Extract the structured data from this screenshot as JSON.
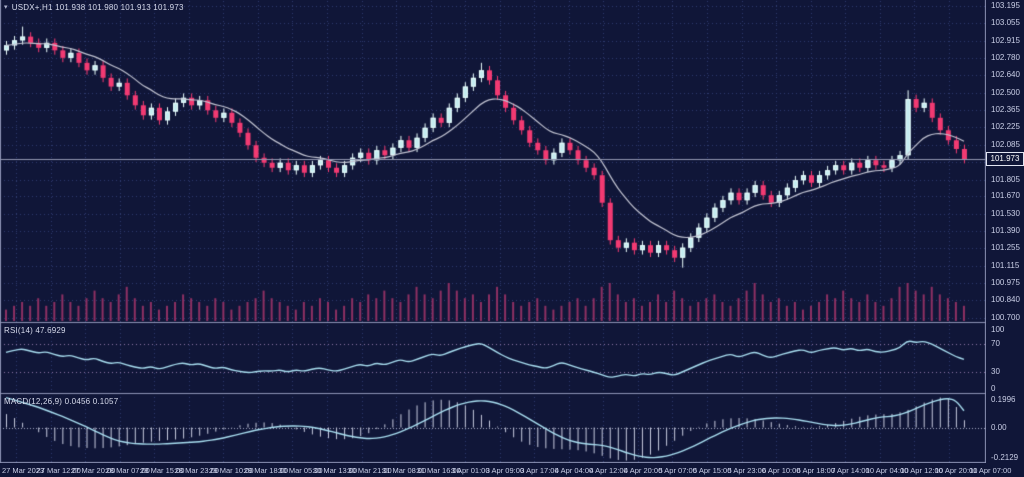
{
  "window": {
    "title": "USDX+,H1 101.938 101.980 101.913 101.973",
    "symbol": "USDX+",
    "timeframe": "H1",
    "open": "101.938",
    "high": "101.980",
    "low": "101.913",
    "close": "101.973",
    "dropdown_icon": "▾"
  },
  "price_axis": {
    "ticks": [
      "103.195",
      "103.055",
      "102.915",
      "102.780",
      "102.640",
      "102.500",
      "102.365",
      "102.225",
      "102.085",
      "101.945",
      "101.805",
      "101.670",
      "101.530",
      "101.390",
      "101.255",
      "101.115",
      "100.975",
      "100.840",
      "100.700"
    ],
    "current_price": "101.973"
  },
  "rsi": {
    "label": "RSI(14) 47.6929",
    "axis_labels": [
      "100",
      "70",
      "30",
      "0"
    ]
  },
  "macd": {
    "label": "MACD(12,26,9) 0.0456 0.1057",
    "axis_labels": [
      "0.1996",
      "0.00",
      "-0.2129"
    ]
  },
  "time_axis": {
    "labels": [
      "27 Mar 2023",
      "27 Mar 12:00",
      "27 Mar 20:00",
      "28 Mar 07:00",
      "28 Mar 15:00",
      "28 Mar 23:00",
      "29 Mar 10:00",
      "29 Mar 18:00",
      "30 Mar 05:00",
      "30 Mar 13:00",
      "30 Mar 21:00",
      "31 Mar 08:00",
      "31 Mar 16:00",
      "3 Apr 01:00",
      "3 Apr 09:00",
      "3 Apr 17:00",
      "4 Apr 04:00",
      "4 Apr 12:00",
      "4 Apr 20:00",
      "5 Apr 07:00",
      "5 Apr 15:00",
      "5 Apr 23:00",
      "6 Apr 10:00",
      "6 Apr 18:00",
      "7 Apr 14:00",
      "10 Apr 04:00",
      "10 Apr 12:00",
      "10 Apr 20:00",
      "11 Apr 07:00"
    ]
  },
  "colors": {
    "bg": "#101638",
    "grid": "#2f3a70",
    "bull": "#c4ecf0",
    "bullEdge": "#eafdfd",
    "bear": "#f23a72",
    "volume": "#8e3063",
    "ma": "#c2c4d2",
    "line": "#a8def0",
    "hist": "#c9cde0",
    "levels": "#8f76a8",
    "zero": "#a6aac6",
    "frame": "#8c92b4",
    "axisText": "#c9cee6",
    "priceLine": "#9297b0",
    "badgeBorder": "#e2e5f2"
  },
  "chart_data": [
    {
      "type": "candlestick",
      "title": "USDX+,H1",
      "ylabel": "price",
      "ohlc_current": {
        "open": 101.938,
        "high": 101.98,
        "low": 101.913,
        "close": 101.973
      },
      "current_price": 101.973,
      "y_ticks": [
        103.195,
        103.055,
        102.915,
        102.78,
        102.64,
        102.5,
        102.365,
        102.225,
        102.085,
        101.945,
        101.805,
        101.67,
        101.53,
        101.39,
        101.255,
        101.115,
        100.975,
        100.84,
        100.7
      ],
      "x_labels": [
        "27 Mar 2023",
        "27 Mar 12:00",
        "27 Mar 20:00",
        "28 Mar 07:00",
        "28 Mar 15:00",
        "28 Mar 23:00",
        "29 Mar 10:00",
        "29 Mar 18:00",
        "30 Mar 05:00",
        "30 Mar 13:00",
        "30 Mar 21:00",
        "31 Mar 08:00",
        "31 Mar 16:00",
        "3 Apr 01:00",
        "3 Apr 09:00",
        "3 Apr 17:00",
        "4 Apr 04:00",
        "4 Apr 12:00",
        "4 Apr 20:00",
        "5 Apr 07:00",
        "5 Apr 15:00",
        "5 Apr 23:00",
        "6 Apr 10:00",
        "6 Apr 18:00",
        "7 Apr 14:00",
        "10 Apr 04:00",
        "10 Apr 12:00",
        "10 Apr 20:00",
        "11 Apr 07:00"
      ],
      "first_open": 102.84,
      "closes": [
        102.88,
        102.92,
        102.95,
        102.9,
        102.86,
        102.9,
        102.84,
        102.78,
        102.82,
        102.74,
        102.68,
        102.72,
        102.62,
        102.55,
        102.58,
        102.48,
        102.4,
        102.32,
        102.38,
        102.28,
        102.35,
        102.42,
        102.46,
        102.4,
        102.44,
        102.36,
        102.3,
        102.34,
        102.26,
        102.18,
        102.08,
        101.98,
        101.94,
        101.9,
        101.94,
        101.88,
        101.92,
        101.86,
        101.92,
        101.96,
        101.9,
        101.86,
        101.92,
        101.98,
        102.02,
        101.96,
        102.04,
        102.0,
        102.06,
        102.12,
        102.06,
        102.14,
        102.22,
        102.3,
        102.26,
        102.38,
        102.46,
        102.55,
        102.62,
        102.68,
        102.6,
        102.48,
        102.38,
        102.28,
        102.2,
        102.1,
        102.04,
        101.96,
        102.02,
        102.1,
        102.04,
        101.96,
        101.9,
        101.84,
        101.62,
        101.32,
        101.26,
        101.3,
        101.24,
        101.28,
        101.22,
        101.28,
        101.24,
        101.18,
        101.26,
        101.34,
        101.42,
        101.5,
        101.58,
        101.64,
        101.7,
        101.64,
        101.7,
        101.76,
        101.68,
        101.62,
        101.68,
        101.74,
        101.8,
        101.84,
        101.78,
        101.84,
        101.88,
        101.92,
        101.88,
        101.94,
        101.9,
        101.96,
        101.92,
        101.9,
        101.96,
        102.0,
        102.45,
        102.38,
        102.42,
        102.3,
        102.2,
        102.12,
        102.05,
        101.97
      ],
      "wick": 0.035,
      "wick_overrides": [
        {
          "i": 2,
          "high": 103.03
        },
        {
          "i": 59,
          "high": 102.74
        },
        {
          "i": 84,
          "low": 101.1
        },
        {
          "i": 112,
          "high": 102.52
        }
      ],
      "ma_period": 10,
      "volume_units": "relative",
      "volume": [
        3,
        4,
        5,
        4,
        6,
        4,
        5,
        7,
        5,
        4,
        6,
        8,
        6,
        5,
        7,
        9,
        6,
        4,
        5,
        3,
        4,
        5,
        7,
        6,
        5,
        4,
        6,
        5,
        3,
        4,
        5,
        6,
        8,
        6,
        5,
        4,
        3,
        5,
        4,
        6,
        5,
        3,
        4,
        6,
        5,
        7,
        6,
        8,
        6,
        5,
        7,
        9,
        7,
        6,
        8,
        10,
        8,
        6,
        7,
        5,
        7,
        9,
        7,
        5,
        4,
        5,
        6,
        4,
        3,
        4,
        5,
        6,
        4,
        6,
        9,
        10,
        7,
        5,
        6,
        4,
        5,
        7,
        5,
        8,
        6,
        4,
        5,
        6,
        7,
        5,
        4,
        6,
        8,
        10,
        7,
        5,
        6,
        4,
        5,
        3,
        4,
        5,
        7,
        6,
        8,
        6,
        5,
        7,
        5,
        4,
        6,
        9,
        10,
        8,
        7,
        9,
        7,
        6,
        5,
        4
      ]
    },
    {
      "type": "line",
      "name": "RSI(14)",
      "current": 47.6929,
      "range": [
        0,
        100
      ],
      "levels": [
        70,
        30
      ],
      "values": [
        58,
        61,
        63,
        60,
        57,
        59,
        55,
        52,
        54,
        50,
        47,
        50,
        45,
        42,
        44,
        40,
        37,
        35,
        38,
        34,
        37,
        41,
        43,
        40,
        42,
        38,
        35,
        37,
        33,
        31,
        29,
        30,
        32,
        31,
        33,
        30,
        33,
        31,
        34,
        36,
        33,
        31,
        34,
        38,
        41,
        38,
        43,
        40,
        44,
        48,
        44,
        48,
        52,
        56,
        53,
        58,
        62,
        66,
        69,
        71,
        65,
        58,
        52,
        47,
        44,
        40,
        38,
        35,
        39,
        44,
        40,
        36,
        33,
        30,
        26,
        22,
        24,
        27,
        24,
        28,
        26,
        30,
        28,
        25,
        30,
        35,
        40,
        45,
        49,
        52,
        56,
        51,
        55,
        59,
        54,
        50,
        54,
        57,
        60,
        62,
        57,
        61,
        63,
        65,
        61,
        64,
        60,
        63,
        59,
        58,
        61,
        64,
        75,
        72,
        74,
        70,
        64,
        58,
        52,
        48
      ]
    },
    {
      "type": "macd",
      "name": "MACD(12,26,9)",
      "main_current": 0.0456,
      "signal_current": 0.1057,
      "range": [
        -0.2129,
        0.1996
      ],
      "signal": [
        0.19,
        0.175,
        0.16,
        0.145,
        0.128,
        0.11,
        0.09,
        0.07,
        0.048,
        0.026,
        0.004,
        -0.02,
        -0.045,
        -0.068,
        -0.085,
        -0.096,
        -0.102,
        -0.105,
        -0.106,
        -0.105,
        -0.103,
        -0.1,
        -0.097,
        -0.094,
        -0.09,
        -0.084,
        -0.076,
        -0.066,
        -0.054,
        -0.042,
        -0.03,
        -0.018,
        -0.008,
        0.0,
        0.006,
        0.009,
        0.01,
        0.008,
        0.002,
        -0.008,
        -0.02,
        -0.033,
        -0.046,
        -0.058,
        -0.066,
        -0.07,
        -0.068,
        -0.06,
        -0.046,
        -0.028,
        -0.006,
        0.018,
        0.044,
        0.07,
        0.096,
        0.12,
        0.14,
        0.156,
        0.166,
        0.17,
        0.166,
        0.154,
        0.136,
        0.112,
        0.084,
        0.054,
        0.024,
        -0.006,
        -0.036,
        -0.062,
        -0.082,
        -0.096,
        -0.104,
        -0.108,
        -0.112,
        -0.124,
        -0.14,
        -0.158,
        -0.174,
        -0.186,
        -0.192,
        -0.19,
        -0.182,
        -0.168,
        -0.15,
        -0.128,
        -0.104,
        -0.078,
        -0.052,
        -0.028,
        -0.006,
        0.014,
        0.032,
        0.046,
        0.055,
        0.06,
        0.061,
        0.058,
        0.052,
        0.044,
        0.034,
        0.024,
        0.016,
        0.012,
        0.014,
        0.022,
        0.034,
        0.048,
        0.06,
        0.068,
        0.07,
        0.082,
        0.098,
        0.12,
        0.142,
        0.162,
        0.176,
        0.185,
        0.172,
        0.106
      ],
      "histogram": [
        0.085,
        0.06,
        0.03,
        0.0,
        -0.03,
        -0.06,
        -0.085,
        -0.105,
        -0.118,
        -0.126,
        -0.13,
        -0.132,
        -0.13,
        -0.126,
        -0.12,
        -0.112,
        -0.104,
        -0.096,
        -0.09,
        -0.085,
        -0.08,
        -0.076,
        -0.07,
        -0.062,
        -0.052,
        -0.04,
        -0.026,
        -0.012,
        0.002,
        0.014,
        0.024,
        0.03,
        0.032,
        0.028,
        0.018,
        0.004,
        -0.012,
        -0.028,
        -0.044,
        -0.058,
        -0.068,
        -0.074,
        -0.074,
        -0.068,
        -0.055,
        -0.036,
        -0.01,
        0.02,
        0.052,
        0.084,
        0.114,
        0.14,
        0.16,
        0.172,
        0.176,
        0.172,
        0.16,
        0.14,
        0.112,
        0.08,
        0.044,
        0.006,
        -0.03,
        -0.062,
        -0.09,
        -0.11,
        -0.124,
        -0.132,
        -0.136,
        -0.138,
        -0.14,
        -0.144,
        -0.152,
        -0.164,
        -0.18,
        -0.196,
        -0.206,
        -0.21,
        -0.205,
        -0.192,
        -0.172,
        -0.146,
        -0.116,
        -0.084,
        -0.052,
        -0.022,
        0.004,
        0.026,
        0.042,
        0.052,
        0.058,
        0.06,
        0.058,
        0.052,
        0.044,
        0.034,
        0.024,
        0.015,
        0.008,
        0.004,
        0.004,
        0.008,
        0.016,
        0.028,
        0.042,
        0.056,
        0.068,
        0.077,
        0.082,
        0.084,
        0.086,
        0.096,
        0.112,
        0.134,
        0.158,
        0.178,
        0.19,
        0.186,
        0.13,
        0.046
      ]
    }
  ]
}
